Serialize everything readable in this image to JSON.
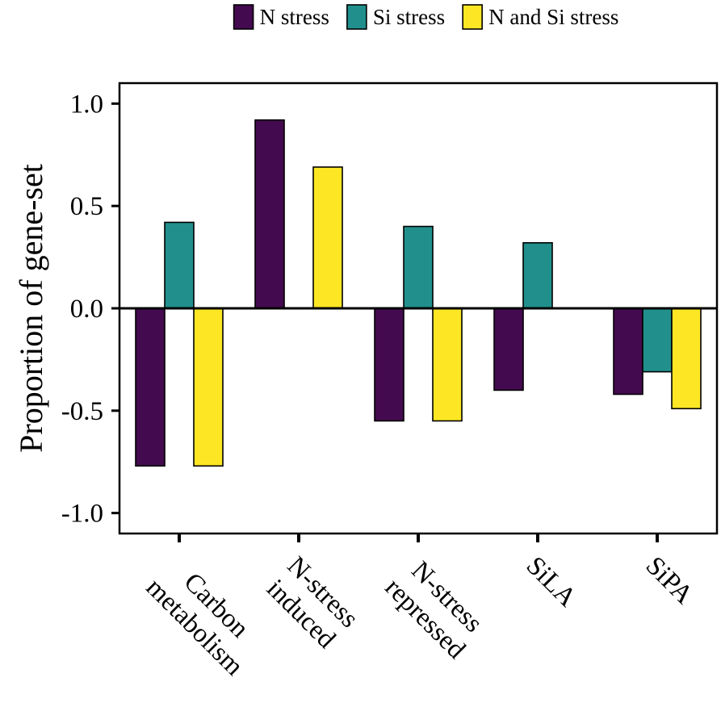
{
  "chart_data": {
    "type": "bar",
    "title": "",
    "xlabel": "",
    "ylabel": "Proportion of gene-set",
    "ylim": [
      -1.1,
      1.1
    ],
    "yticks": [
      "1.0",
      "0.5",
      "0.0",
      "-0.5",
      "-1.0"
    ],
    "ytick_values": [
      1.0,
      0.5,
      0.0,
      -0.5,
      -1.0
    ],
    "categories": [
      [
        "Carbon",
        "metabolism"
      ],
      [
        "N-stress",
        "induced"
      ],
      [
        "N-stress",
        "repressed"
      ],
      [
        "SiLA"
      ],
      [
        "SiPA"
      ]
    ],
    "series": [
      {
        "name": "N stress",
        "color": "#440A4F",
        "values": [
          -0.77,
          0.92,
          -0.55,
          -0.4,
          -0.42
        ]
      },
      {
        "name": "Si stress",
        "color": "#21908C",
        "values": [
          0.42,
          null,
          0.4,
          0.32,
          -0.31
        ]
      },
      {
        "name": "N and Si stress",
        "color": "#FDE725",
        "values": [
          -0.77,
          0.69,
          -0.55,
          null,
          -0.49
        ]
      }
    ],
    "legend_position": "top"
  }
}
